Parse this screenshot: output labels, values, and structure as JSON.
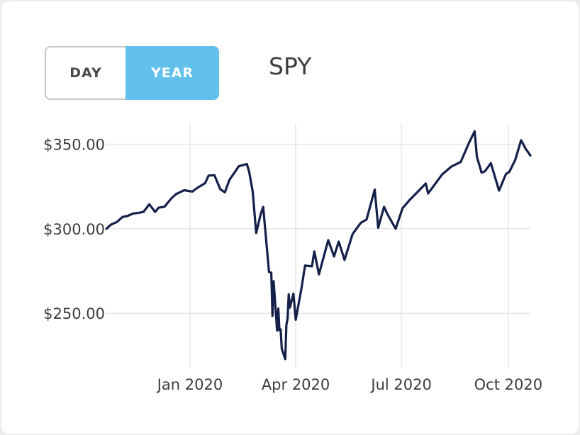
{
  "header": {
    "ticker": "SPY",
    "toggle": {
      "day_label": "DAY",
      "year_label": "YEAR",
      "active": "YEAR",
      "active_color": "#62c0ec"
    }
  },
  "chart_data": {
    "type": "line",
    "title": "SPY",
    "xlabel": "",
    "ylabel": "",
    "x_start": "2019-10-21",
    "x_end": "2020-10-20",
    "ylim": [
      222,
      362
    ],
    "y_ticks": [
      {
        "value": 250,
        "label": "$250.00"
      },
      {
        "value": 300,
        "label": "$300.00"
      },
      {
        "value": 350,
        "label": "$350.00"
      }
    ],
    "x_ticks": [
      {
        "date": "2020-01-01",
        "label": "Jan 2020"
      },
      {
        "date": "2020-04-01",
        "label": "Apr 2020"
      },
      {
        "date": "2020-07-01",
        "label": "Jul 2020"
      },
      {
        "date": "2020-10-01",
        "label": "Oct 2020"
      }
    ],
    "grid": true,
    "line_color": "#14204a",
    "series": [
      {
        "points": [
          [
            "2019-10-21",
            300.0
          ],
          [
            "2019-10-25",
            302.5
          ],
          [
            "2019-10-30",
            304.0
          ],
          [
            "2019-11-04",
            307.0
          ],
          [
            "2019-11-08",
            307.5
          ],
          [
            "2019-11-13",
            309.0
          ],
          [
            "2019-11-18",
            309.5
          ],
          [
            "2019-11-22",
            310.0
          ],
          [
            "2019-11-27",
            314.5
          ],
          [
            "2019-12-02",
            310.0
          ],
          [
            "2019-12-05",
            312.5
          ],
          [
            "2019-12-10",
            313.0
          ],
          [
            "2019-12-16",
            318.0
          ],
          [
            "2019-12-20",
            320.5
          ],
          [
            "2019-12-27",
            322.8
          ],
          [
            "2020-01-03",
            322.0
          ],
          [
            "2020-01-08",
            324.5
          ],
          [
            "2020-01-14",
            327.0
          ],
          [
            "2020-01-17",
            331.5
          ],
          [
            "2020-01-22",
            331.7
          ],
          [
            "2020-01-27",
            323.5
          ],
          [
            "2020-01-31",
            321.5
          ],
          [
            "2020-02-04",
            329.0
          ],
          [
            "2020-02-07",
            332.0
          ],
          [
            "2020-02-12",
            337.0
          ],
          [
            "2020-02-19",
            338.3
          ],
          [
            "2020-02-21",
            333.5
          ],
          [
            "2020-02-24",
            322.0
          ],
          [
            "2020-02-27",
            297.5
          ],
          [
            "2020-03-02",
            309.0
          ],
          [
            "2020-03-04",
            312.9
          ],
          [
            "2020-03-06",
            297.5
          ],
          [
            "2020-03-09",
            274.5
          ],
          [
            "2020-03-11",
            274.0
          ],
          [
            "2020-03-12",
            248.5
          ],
          [
            "2020-03-13",
            269.0
          ],
          [
            "2020-03-16",
            239.8
          ],
          [
            "2020-03-17",
            252.8
          ],
          [
            "2020-03-18",
            240.0
          ],
          [
            "2020-03-19",
            240.5
          ],
          [
            "2020-03-20",
            229.0
          ],
          [
            "2020-03-23",
            222.9
          ],
          [
            "2020-03-24",
            243.2
          ],
          [
            "2020-03-25",
            246.8
          ],
          [
            "2020-03-26",
            261.2
          ],
          [
            "2020-03-27",
            253.4
          ],
          [
            "2020-03-30",
            261.6
          ],
          [
            "2020-04-01",
            246.2
          ],
          [
            "2020-04-06",
            264.9
          ],
          [
            "2020-04-09",
            278.2
          ],
          [
            "2020-04-15",
            277.8
          ],
          [
            "2020-04-17",
            286.6
          ],
          [
            "2020-04-21",
            273.0
          ],
          [
            "2020-04-29",
            293.2
          ],
          [
            "2020-05-04",
            283.6
          ],
          [
            "2020-05-08",
            292.4
          ],
          [
            "2020-05-13",
            281.6
          ],
          [
            "2020-05-20",
            296.9
          ],
          [
            "2020-05-27",
            303.5
          ],
          [
            "2020-06-01",
            305.5
          ],
          [
            "2020-06-08",
            323.2
          ],
          [
            "2020-06-11",
            300.6
          ],
          [
            "2020-06-16",
            312.9
          ],
          [
            "2020-06-19",
            308.6
          ],
          [
            "2020-06-26",
            300.0
          ],
          [
            "2020-07-02",
            312.2
          ],
          [
            "2020-07-08",
            317.0
          ],
          [
            "2020-07-15",
            321.9
          ],
          [
            "2020-07-22",
            326.8
          ],
          [
            "2020-07-24",
            320.9
          ],
          [
            "2020-08-05",
            332.1
          ],
          [
            "2020-08-13",
            336.8
          ],
          [
            "2020-08-21",
            339.5
          ],
          [
            "2020-08-28",
            350.6
          ],
          [
            "2020-09-02",
            357.7
          ],
          [
            "2020-09-04",
            342.6
          ],
          [
            "2020-09-08",
            333.2
          ],
          [
            "2020-09-11",
            334.1
          ],
          [
            "2020-09-16",
            338.8
          ],
          [
            "2020-09-23",
            322.6
          ],
          [
            "2020-09-29",
            332.4
          ],
          [
            "2020-10-02",
            333.8
          ],
          [
            "2020-10-07",
            340.8
          ],
          [
            "2020-10-12",
            352.4
          ],
          [
            "2020-10-16",
            347.3
          ],
          [
            "2020-10-20",
            343.4
          ]
        ]
      }
    ]
  }
}
